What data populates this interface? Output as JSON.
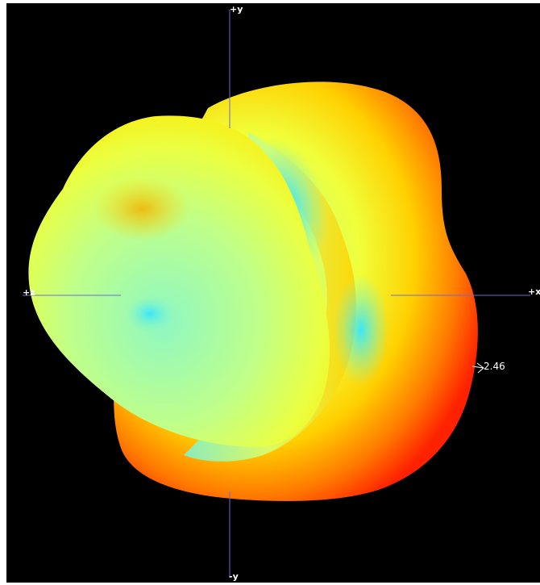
{
  "viewer": {
    "axes": {
      "pos_y": "+y",
      "neg_y": "-y",
      "pos_x": "+x",
      "neg_z": "+z"
    },
    "radius_value": "2.46"
  },
  "colors": {
    "background": "#000000",
    "axis_line": "#6b6bd6",
    "surface_hot": "#ff2a00",
    "surface_warm": "#ffcc00",
    "surface_mid": "#f2ff2a",
    "surface_cool": "#7af5c8",
    "surface_cold": "#30e8ff"
  }
}
